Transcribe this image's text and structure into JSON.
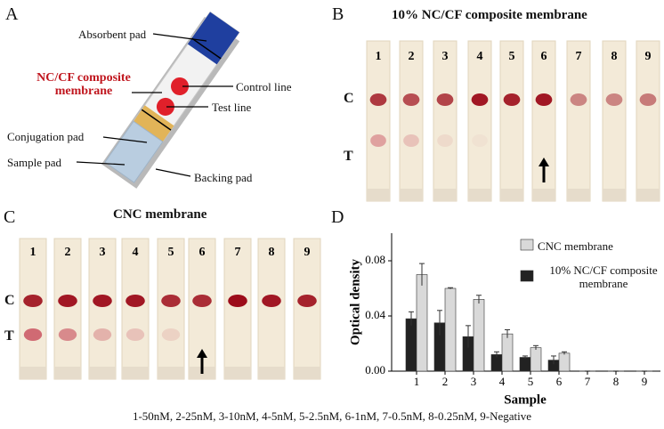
{
  "panel_a": {
    "letter": "A",
    "absorbent_pad": "Absorbent pad",
    "membrane": "NC/CF composite membrane",
    "control_line": "Control line",
    "test_line": "Test line",
    "conjugation_pad": "Conjugation pad",
    "sample_pad": "Sample pad",
    "backing_pad": "Backing pad"
  },
  "panel_b": {
    "letter": "B",
    "title": "10% NC/CF composite membrane",
    "strips": [
      "1",
      "2",
      "3",
      "4",
      "5",
      "6",
      "7",
      "8",
      "9"
    ],
    "control_label": "C",
    "test_label": "T"
  },
  "panel_c": {
    "letter": "C",
    "title": "CNC membrane",
    "strips": [
      "1",
      "2",
      "3",
      "4",
      "5",
      "6",
      "7",
      "8",
      "9"
    ],
    "control_label": "C",
    "test_label": "T"
  },
  "panel_d": {
    "letter": "D"
  },
  "chart_data": {
    "type": "bar",
    "x_label": "Sample",
    "y_label": "Optical density",
    "categories": [
      "1",
      "2",
      "3",
      "4",
      "5",
      "6",
      "7",
      "8",
      "9"
    ],
    "series": [
      {
        "name": "10% NC/CF composite membrane",
        "color": "#222222",
        "values": [
          0.038,
          0.035,
          0.025,
          0.012,
          0.01,
          0.008,
          0,
          0,
          0
        ],
        "errors": [
          0.005,
          0.009,
          0.008,
          0.002,
          0.001,
          0.003,
          0,
          0,
          0
        ]
      },
      {
        "name": "CNC membrane",
        "color": "#d9d9d9",
        "values": [
          0.07,
          0.06,
          0.052,
          0.027,
          0.017,
          0.013,
          0,
          0,
          0
        ],
        "errors": [
          0.008,
          0.0005,
          0.003,
          0.003,
          0.0015,
          0.001,
          0,
          0,
          0
        ]
      }
    ],
    "ylim": [
      0,
      0.1
    ],
    "yticks": [
      {
        "value": 0,
        "label": "0.00"
      },
      {
        "value": 0.04,
        "label": "0.04"
      },
      {
        "value": 0.08,
        "label": "0.08"
      }
    ]
  },
  "caption": "1-50nM, 2-25nM, 3-10nM, 4-5nM, 5-2.5nM, 6-1nM, 7-0.5nM, 8-0.25nM, 9-Negative"
}
